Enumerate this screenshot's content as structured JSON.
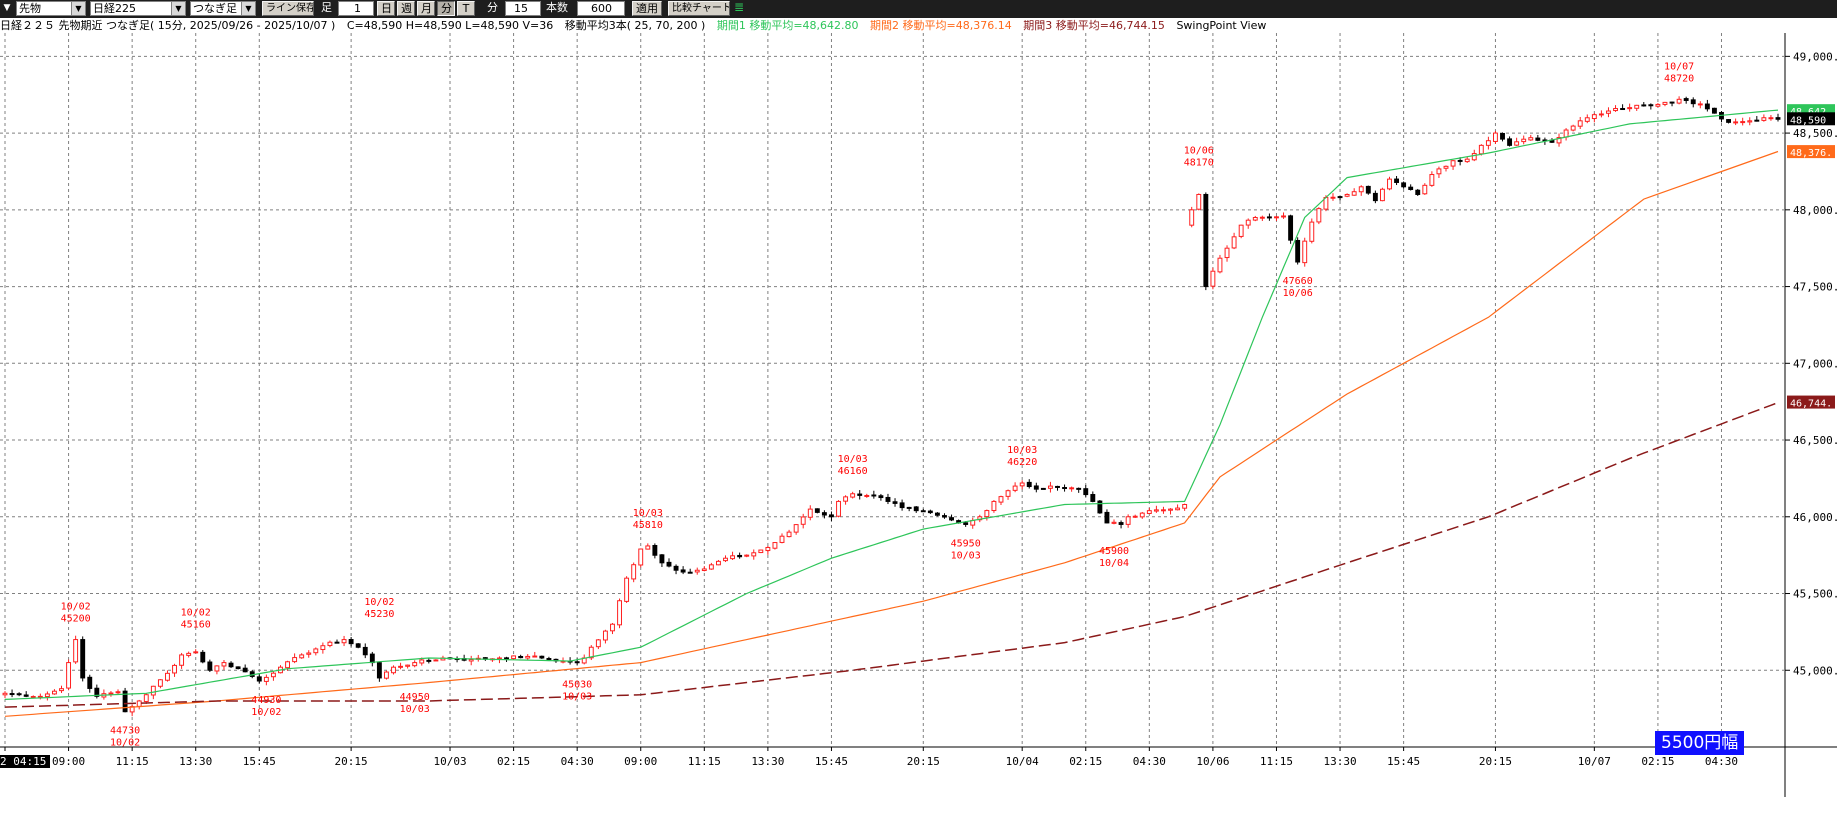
{
  "toolbar": {
    "market_select": "先物",
    "index_select": "日経225",
    "type_select": "つなぎ足",
    "line_save_button": "ライン保存",
    "foot_label": "足",
    "foot_value": "1",
    "day_button": "日",
    "week_button": "週",
    "month_button": "月",
    "minute_button": "分",
    "tick_button": "T",
    "minutes_label": "分",
    "interval_value": "15",
    "count_label": "本数",
    "count_value": "600",
    "apply_button": "適用",
    "compare_button": "比較チャート"
  },
  "info": {
    "title": "日経２２５ 先物期近 つなぎ足( 15分, 2025/09/26 - 2025/10/07 )",
    "ohlc": "C=48,590 H=48,590 L=48,590 V=36",
    "ma_title": "移動平均3本( 25, 70, 200 )",
    "ma1": "期間1 移動平均=48,642.80",
    "ma2": "期間2 移動平均=48,376.14",
    "ma3": "期間3 移動平均=46,744.15",
    "swing": "SwingPoint View"
  },
  "colors": {
    "ma1": "#2ec55a",
    "ma2": "#ff6a1a",
    "ma3": "#8b1a1a",
    "up": "#ff2020",
    "down": "#000000",
    "annotation": "#ff0000",
    "badge_bg": "#1010ff"
  },
  "chart_data": {
    "type": "candlestick",
    "title": "日経２２５ 先物期近 つなぎ足(15分)",
    "ylim": [
      44500,
      49100
    ],
    "yticks": [
      45000,
      45500,
      46000,
      46500,
      47000,
      47500,
      48000,
      48500,
      49000
    ],
    "ytick_labels": [
      "45,000.",
      "45,500.",
      "46,000.",
      "46,500.",
      "47,000.",
      "47,500.",
      "48,000.",
      "48,500.",
      "49,000."
    ],
    "x_labels": [
      "2 04:15",
      "09:00",
      "11:15",
      "13:30",
      "15:45",
      "20:15",
      "10/03",
      "02:15",
      "04:30",
      "09:00",
      "11:15",
      "13:30",
      "15:45",
      "20:15",
      "10/04",
      "02:15",
      "04:30",
      "10/06",
      "11:15",
      "13:30",
      "15:45",
      "20:15",
      "10/07",
      "02:15",
      "04:30"
    ],
    "x_label_index": [
      0,
      9,
      18,
      27,
      36,
      49,
      63,
      72,
      81,
      90,
      99,
      108,
      117,
      130,
      144,
      153,
      162,
      171,
      180,
      189,
      198,
      211,
      225,
      234,
      243
    ],
    "n_bars": 252,
    "anchors": [
      [
        0,
        44850
      ],
      [
        5,
        44830
      ],
      [
        8,
        44880
      ],
      [
        9,
        45050
      ],
      [
        10,
        45200
      ],
      [
        11,
        44950
      ],
      [
        13,
        44830
      ],
      [
        16,
        44860
      ],
      [
        17,
        44730
      ],
      [
        19,
        44800
      ],
      [
        23,
        44980
      ],
      [
        25,
        45100
      ],
      [
        27,
        45120
      ],
      [
        29,
        45000
      ],
      [
        31,
        45050
      ],
      [
        34,
        44990
      ],
      [
        36,
        44930
      ],
      [
        39,
        45020
      ],
      [
        42,
        45100
      ],
      [
        45,
        45160
      ],
      [
        48,
        45200
      ],
      [
        50,
        45150
      ],
      [
        52,
        45050
      ],
      [
        53,
        44950
      ],
      [
        55,
        45020
      ],
      [
        58,
        45050
      ],
      [
        62,
        45080
      ],
      [
        66,
        45070
      ],
      [
        70,
        45080
      ],
      [
        74,
        45090
      ],
      [
        76,
        45080
      ],
      [
        79,
        45060
      ],
      [
        81,
        45050
      ],
      [
        82,
        45080
      ],
      [
        83,
        45150
      ],
      [
        86,
        45300
      ],
      [
        88,
        45600
      ],
      [
        90,
        45790
      ],
      [
        91,
        45810
      ],
      [
        93,
        45700
      ],
      [
        96,
        45640
      ],
      [
        99,
        45660
      ],
      [
        102,
        45730
      ],
      [
        105,
        45750
      ],
      [
        108,
        45800
      ],
      [
        111,
        45900
      ],
      [
        114,
        46050
      ],
      [
        117,
        46000
      ],
      [
        118,
        46100
      ],
      [
        120,
        46150
      ],
      [
        123,
        46140
      ],
      [
        125,
        46100
      ],
      [
        127,
        46060
      ],
      [
        129,
        46040
      ],
      [
        132,
        46010
      ],
      [
        135,
        45960
      ],
      [
        136,
        45950
      ],
      [
        138,
        46000
      ],
      [
        140,
        46100
      ],
      [
        142,
        46170
      ],
      [
        143,
        46200
      ],
      [
        144,
        46220
      ],
      [
        146,
        46180
      ],
      [
        148,
        46200
      ],
      [
        150,
        46190
      ],
      [
        152,
        46180
      ],
      [
        154,
        46100
      ],
      [
        156,
        45960
      ],
      [
        158,
        45950
      ],
      [
        159,
        46000
      ],
      [
        162,
        46040
      ],
      [
        165,
        46050
      ],
      [
        167,
        46080
      ],
      [
        168,
        48000
      ],
      [
        169,
        48100
      ],
      [
        170,
        47500
      ],
      [
        171,
        47600
      ],
      [
        173,
        47750
      ],
      [
        175,
        47900
      ],
      [
        177,
        47950
      ],
      [
        179,
        47950
      ],
      [
        181,
        47960
      ],
      [
        183,
        47660
      ],
      [
        185,
        47920
      ],
      [
        187,
        48080
      ],
      [
        190,
        48100
      ],
      [
        192,
        48150
      ],
      [
        194,
        48060
      ],
      [
        196,
        48200
      ],
      [
        198,
        48150
      ],
      [
        200,
        48100
      ],
      [
        202,
        48230
      ],
      [
        205,
        48320
      ],
      [
        207,
        48330
      ],
      [
        209,
        48420
      ],
      [
        211,
        48500
      ],
      [
        213,
        48420
      ],
      [
        216,
        48470
      ],
      [
        219,
        48440
      ],
      [
        221,
        48520
      ],
      [
        223,
        48580
      ],
      [
        225,
        48620
      ],
      [
        228,
        48660
      ],
      [
        232,
        48680
      ],
      [
        235,
        48700
      ],
      [
        237,
        48720
      ],
      [
        240,
        48690
      ],
      [
        242,
        48630
      ],
      [
        244,
        48570
      ],
      [
        247,
        48580
      ],
      [
        249,
        48600
      ],
      [
        251,
        48590
      ]
    ],
    "ma_series": [
      {
        "name": "期間1 移動平均",
        "period": 25,
        "last": 48642.8,
        "points": [
          [
            0,
            44810
          ],
          [
            20,
            44850
          ],
          [
            40,
            45010
          ],
          [
            60,
            45080
          ],
          [
            80,
            45060
          ],
          [
            90,
            45150
          ],
          [
            105,
            45500
          ],
          [
            117,
            45730
          ],
          [
            130,
            45920
          ],
          [
            150,
            46080
          ],
          [
            167,
            46100
          ],
          [
            172,
            46600
          ],
          [
            178,
            47300
          ],
          [
            184,
            47950
          ],
          [
            190,
            48210
          ],
          [
            210,
            48370
          ],
          [
            230,
            48560
          ],
          [
            251,
            48650
          ]
        ]
      },
      {
        "name": "期間2 移動平均",
        "period": 70,
        "last": 48376.14,
        "points": [
          [
            0,
            44700
          ],
          [
            30,
            44800
          ],
          [
            60,
            44920
          ],
          [
            90,
            45050
          ],
          [
            110,
            45250
          ],
          [
            130,
            45450
          ],
          [
            150,
            45700
          ],
          [
            167,
            45960
          ],
          [
            172,
            46260
          ],
          [
            190,
            46800
          ],
          [
            210,
            47300
          ],
          [
            232,
            48070
          ],
          [
            251,
            48380
          ]
        ]
      },
      {
        "name": "期間3 移動平均",
        "period": 200,
        "last": 46744.15,
        "points": [
          [
            0,
            44760
          ],
          [
            30,
            44800
          ],
          [
            60,
            44800
          ],
          [
            90,
            44840
          ],
          [
            120,
            45000
          ],
          [
            150,
            45180
          ],
          [
            167,
            45350
          ],
          [
            190,
            45700
          ],
          [
            210,
            46000
          ],
          [
            230,
            46380
          ],
          [
            251,
            46744
          ]
        ]
      }
    ],
    "annotations": [
      {
        "idx": 10,
        "value": 45200,
        "date": "10/02",
        "text": "45200",
        "pos": "above"
      },
      {
        "idx": 17,
        "value": 44730,
        "date": "10/02",
        "text": "44730",
        "pos": "below"
      },
      {
        "idx": 27,
        "value": 45160,
        "date": "10/02",
        "text": "45160",
        "pos": "above"
      },
      {
        "idx": 37,
        "value": 44930,
        "date": "10/02",
        "text": "44930",
        "pos": "below"
      },
      {
        "idx": 53,
        "value": 45230,
        "date": "10/02",
        "text": "45230",
        "pos": "above"
      },
      {
        "idx": 58,
        "value": 44950,
        "date": "10/03",
        "text": "44950",
        "pos": "below"
      },
      {
        "idx": 81,
        "value": 45030,
        "date": "10/03",
        "text": "45030",
        "pos": "below"
      },
      {
        "idx": 91,
        "value": 45810,
        "date": "10/03",
        "text": "45810",
        "pos": "above"
      },
      {
        "idx": 120,
        "value": 46160,
        "date": "10/03",
        "text": "46160",
        "pos": "above"
      },
      {
        "idx": 136,
        "value": 45950,
        "date": "10/03",
        "text": "45950",
        "pos": "below"
      },
      {
        "idx": 144,
        "value": 46220,
        "date": "10/03",
        "text": "46220",
        "pos": "above"
      },
      {
        "idx": 157,
        "value": 45900,
        "date": "10/04",
        "text": "45900",
        "pos": "below"
      },
      {
        "idx": 169,
        "value": 48170,
        "date": "10/06",
        "text": "48170",
        "pos": "above"
      },
      {
        "idx": 183,
        "value": 47660,
        "date": "10/06",
        "text": "47660",
        "pos": "below"
      },
      {
        "idx": 237,
        "value": 48720,
        "date": "10/07",
        "text": "48720",
        "pos": "above"
      }
    ],
    "right_markers": [
      {
        "value": 48642.8,
        "text": "48,642.",
        "bg": "#2ec55a"
      },
      {
        "value": 48590,
        "text": "48,590",
        "bg": "#000000"
      },
      {
        "value": 48376.14,
        "text": "48,376.",
        "bg": "#ff6a1a"
      },
      {
        "value": 46744.15,
        "text": "46,744.",
        "bg": "#8b1a1a"
      }
    ],
    "grid": true
  },
  "badge": "5500円幅"
}
